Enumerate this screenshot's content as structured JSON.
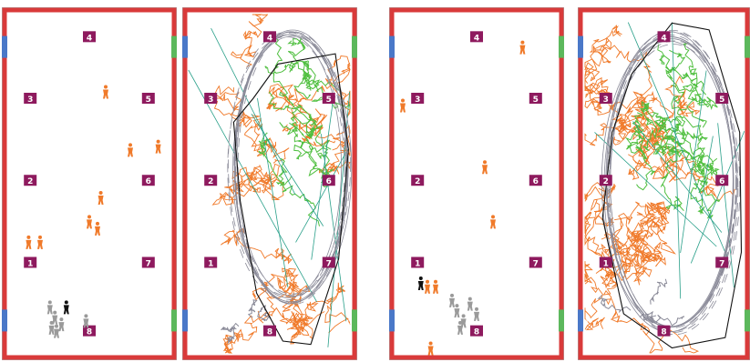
{
  "colors": {
    "frame_outer": "#a8a8a8",
    "frame_red": "#d93a3a",
    "label_bg": "#8e1a5e",
    "label_fg": "#ffffff",
    "exit_blue": "#4a78c8",
    "exit_green": "#5cb85c",
    "person_orange": "#f07a2a",
    "person_gray": "#9a9a9a",
    "person_black": "#111111",
    "trail_orange": "#f07a2a",
    "trail_green": "#4fbf3f",
    "trail_teal": "#2aa08a",
    "trail_gray": "#8a8a98",
    "hull_black": "#111111"
  },
  "panels": [
    {
      "id": "panel-1",
      "kind": "agents",
      "labels": [
        "4",
        "3",
        "5",
        "2",
        "6",
        "1",
        "7",
        "8"
      ],
      "side_marks": [
        "0",
        "0",
        "0",
        "0"
      ],
      "orange_people": [
        [
          0.6,
          0.23
        ],
        [
          0.75,
          0.4
        ],
        [
          0.92,
          0.39
        ],
        [
          0.57,
          0.54
        ],
        [
          0.5,
          0.61
        ],
        [
          0.55,
          0.63
        ],
        [
          0.2,
          0.67
        ],
        [
          0.13,
          0.67
        ]
      ],
      "gray_people": [
        [
          0.26,
          0.86
        ],
        [
          0.29,
          0.89
        ],
        [
          0.33,
          0.91
        ],
        [
          0.3,
          0.93
        ],
        [
          0.27,
          0.92
        ],
        [
          0.48,
          0.9
        ]
      ],
      "black_people": [
        [
          0.36,
          0.86
        ]
      ]
    },
    {
      "id": "panel-2",
      "kind": "trails",
      "labels": [
        "4",
        "3",
        "5",
        "2",
        "6",
        "1",
        "7",
        "8"
      ],
      "side_marks": [
        "0",
        "0",
        "0",
        "0"
      ],
      "trail_seed": 7,
      "hull": [
        [
          0.4,
          0.25
        ],
        [
          0.55,
          0.15
        ],
        [
          0.9,
          0.12
        ],
        [
          0.98,
          0.4
        ],
        [
          0.92,
          0.72
        ],
        [
          0.75,
          0.97
        ],
        [
          0.58,
          0.96
        ],
        [
          0.42,
          0.82
        ],
        [
          0.32,
          0.55
        ],
        [
          0.28,
          0.32
        ]
      ]
    },
    {
      "id": "panel-3",
      "kind": "agents",
      "labels": [
        "4",
        "3",
        "5",
        "2",
        "6",
        "1",
        "7",
        "8"
      ],
      "side_marks": [
        "0",
        "0",
        "0",
        "0"
      ],
      "orange_people": [
        [
          0.78,
          0.1
        ],
        [
          0.05,
          0.27
        ],
        [
          0.55,
          0.45
        ],
        [
          0.6,
          0.61
        ],
        [
          0.2,
          0.8
        ],
        [
          0.25,
          0.8
        ],
        [
          0.22,
          0.98
        ]
      ],
      "gray_people": [
        [
          0.35,
          0.84
        ],
        [
          0.38,
          0.87
        ],
        [
          0.42,
          0.9
        ],
        [
          0.46,
          0.85
        ],
        [
          0.4,
          0.92
        ],
        [
          0.5,
          0.88
        ]
      ],
      "black_people": [
        [
          0.16,
          0.79
        ]
      ]
    },
    {
      "id": "panel-4",
      "kind": "trails",
      "labels": [
        "4",
        "3",
        "5",
        "2",
        "6",
        "1",
        "7",
        "8"
      ],
      "side_marks": [
        "0",
        "0",
        "0",
        "0"
      ],
      "trail_seed": 19,
      "hull": [
        [
          0.3,
          0.18
        ],
        [
          0.55,
          0.03
        ],
        [
          0.78,
          0.05
        ],
        [
          0.97,
          0.35
        ],
        [
          0.98,
          0.7
        ],
        [
          0.88,
          0.95
        ],
        [
          0.55,
          0.98
        ],
        [
          0.25,
          0.88
        ],
        [
          0.12,
          0.6
        ],
        [
          0.18,
          0.35
        ]
      ]
    }
  ]
}
